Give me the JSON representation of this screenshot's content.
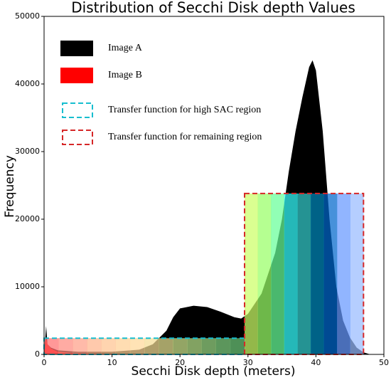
{
  "chart_data": {
    "type": "area",
    "title": "Distribution of Secchi Disk depth Values",
    "x_label": "Secchi Disk depth (meters)",
    "y_label": "Frequency",
    "xlim": [
      0,
      50
    ],
    "xticks": [
      0,
      10,
      20,
      30,
      40,
      50
    ],
    "ylim": [
      0,
      50000
    ],
    "yticks": [
      0,
      10000,
      20000,
      30000,
      40000,
      50000
    ],
    "series": [
      {
        "name": "Image A",
        "color": "#000000",
        "x": [
          0,
          0.3,
          0.5,
          1,
          2,
          5,
          10,
          14,
          16,
          18,
          19,
          20,
          22,
          24,
          26,
          28,
          29,
          30,
          32,
          34,
          35,
          36,
          37,
          38,
          39,
          39.5,
          40,
          41,
          42,
          43,
          44,
          45,
          46,
          47,
          48
        ],
        "values": [
          0,
          4200,
          1500,
          1000,
          600,
          400,
          400,
          700,
          1500,
          3500,
          5500,
          6800,
          7200,
          7000,
          6300,
          5500,
          5300,
          6000,
          9000,
          15000,
          20000,
          27000,
          33000,
          38000,
          42500,
          43500,
          42000,
          33000,
          20000,
          10000,
          5000,
          2500,
          1000,
          300,
          0
        ]
      },
      {
        "name": "Image B",
        "color": "#ff0000",
        "x": [
          0,
          0.3,
          0.5,
          1,
          2,
          4,
          8,
          14,
          20
        ],
        "values": [
          0,
          2500,
          1500,
          900,
          400,
          200,
          100,
          50,
          0
        ]
      }
    ],
    "regions": [
      {
        "name": "Transfer function for high SAC region",
        "color": "#17becf",
        "x0": 0,
        "x1": 29.5,
        "height": 2400,
        "bands": [
          "#ff7070",
          "#ff8a80",
          "#ffa088",
          "#ffb48c",
          "#ffc490",
          "#ffd094",
          "#ffd898",
          "#f4dc94",
          "#e4e090",
          "#cce48c",
          "#b4e088",
          "#98d884",
          "#80d080",
          "#6cc878"
        ]
      },
      {
        "name": "Transfer function for remaining region",
        "color": "#d62728",
        "x0": 29.5,
        "x1": 47,
        "height": 23800,
        "bands": [
          "#ccff66",
          "#99ff66",
          "#66ff99",
          "#33ffff",
          "#33cccc",
          "#0088bb",
          "#0066cc",
          "#6699ff",
          "#99bbff"
        ]
      }
    ]
  }
}
